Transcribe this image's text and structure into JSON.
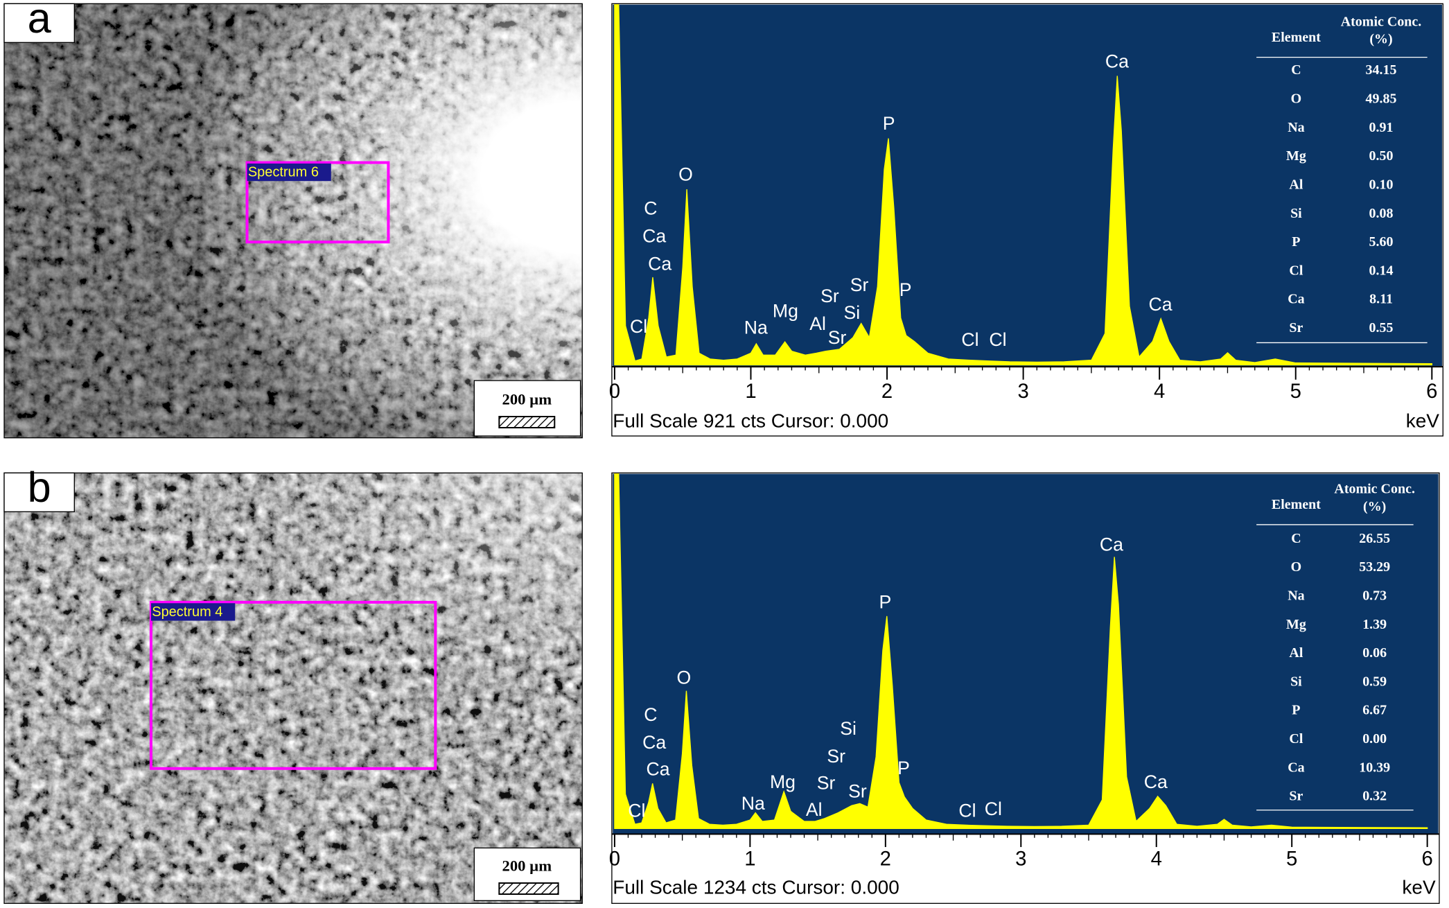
{
  "panels": [
    {
      "label": "a",
      "spectrum_label": "Spectrum 6",
      "scale_bar": "200 µm"
    },
    {
      "label": "b",
      "spectrum_label": "Spectrum 4",
      "scale_bar": "200 µm"
    }
  ],
  "chart_data": [
    {
      "type": "area",
      "color": "#ffff00",
      "background": "#0b3565",
      "x": [
        0,
        0.03,
        0.08,
        0.15,
        0.2,
        0.25,
        0.28,
        0.32,
        0.38,
        0.45,
        0.5,
        0.53,
        0.57,
        0.62,
        0.7,
        0.8,
        0.9,
        1.0,
        1.04,
        1.09,
        1.18,
        1.25,
        1.3,
        1.4,
        1.48,
        1.55,
        1.65,
        1.75,
        1.81,
        1.87,
        1.93,
        1.98,
        2.01,
        2.05,
        2.1,
        2.14,
        2.2,
        2.3,
        2.45,
        2.6,
        2.75,
        2.9,
        3.1,
        3.3,
        3.5,
        3.6,
        3.66,
        3.69,
        3.72,
        3.78,
        3.85,
        3.95,
        4.01,
        4.07,
        4.15,
        4.3,
        4.45,
        4.5,
        4.56,
        4.7,
        4.85,
        5.0,
        5.5,
        6.0
      ],
      "values": [
        921,
        921,
        100,
        10,
        15,
        120,
        224,
        100,
        20,
        25,
        250,
        449,
        200,
        30,
        15,
        12,
        15,
        30,
        54,
        25,
        25,
        59,
        35,
        25,
        30,
        35,
        40,
        70,
        106,
        70,
        200,
        500,
        579,
        400,
        120,
        75,
        60,
        30,
        15,
        12,
        10,
        8,
        7,
        8,
        12,
        80,
        550,
        739,
        600,
        150,
        20,
        60,
        118,
        60,
        12,
        8,
        15,
        31,
        12,
        6,
        15,
        5,
        4,
        3
      ],
      "xlim": [
        0,
        6
      ],
      "xticks": [
        0,
        1,
        2,
        3,
        4,
        5,
        6
      ],
      "ylim": [
        0,
        921
      ],
      "x_label": "keV",
      "footer": "Full Scale 921 cts Cursor: 0.000",
      "annotations": [
        "Cl",
        "C",
        "Ca",
        "Ca",
        "O",
        "Na",
        "Mg",
        "Al",
        "Sr",
        "Sr",
        "Sr",
        "Si",
        "P",
        "P",
        "Cl",
        "Cl",
        "Ca",
        "Ca"
      ],
      "table": {
        "header": [
          "Element",
          "Atomic Conc. (%)"
        ],
        "rows": [
          [
            "C",
            "34.15"
          ],
          [
            "O",
            "49.85"
          ],
          [
            "Na",
            "0.91"
          ],
          [
            "Mg",
            "0.50"
          ],
          [
            "Al",
            "0.10"
          ],
          [
            "Si",
            "0.08"
          ],
          [
            "P",
            "5.60"
          ],
          [
            "Cl",
            "0.14"
          ],
          [
            "Ca",
            "8.11"
          ],
          [
            "Sr",
            "0.55"
          ]
        ]
      }
    },
    {
      "type": "area",
      "color": "#ffff00",
      "background": "#0b3565",
      "x": [
        0,
        0.03,
        0.08,
        0.15,
        0.2,
        0.25,
        0.28,
        0.32,
        0.38,
        0.45,
        0.5,
        0.53,
        0.57,
        0.62,
        0.7,
        0.8,
        0.9,
        1.0,
        1.04,
        1.09,
        1.18,
        1.25,
        1.3,
        1.4,
        1.48,
        1.55,
        1.65,
        1.75,
        1.81,
        1.87,
        1.93,
        1.98,
        2.01,
        2.05,
        2.1,
        2.14,
        2.2,
        2.3,
        2.45,
        2.6,
        2.75,
        2.9,
        3.1,
        3.3,
        3.5,
        3.6,
        3.66,
        3.69,
        3.72,
        3.78,
        3.85,
        3.95,
        4.01,
        4.07,
        4.15,
        4.3,
        4.45,
        4.5,
        4.56,
        4.7,
        4.85,
        5.0,
        5.5,
        6.0
      ],
      "values": [
        1234,
        1234,
        120,
        15,
        20,
        90,
        157,
        70,
        20,
        30,
        260,
        479,
        220,
        35,
        15,
        12,
        15,
        30,
        55,
        25,
        30,
        129,
        60,
        25,
        25,
        35,
        55,
        80,
        87,
        75,
        250,
        620,
        739,
        500,
        160,
        110,
        70,
        30,
        15,
        12,
        10,
        8,
        7,
        8,
        12,
        100,
        700,
        945,
        780,
        180,
        25,
        70,
        112,
        80,
        15,
        8,
        15,
        32,
        12,
        6,
        12,
        5,
        4,
        3
      ],
      "xlim": [
        0,
        6
      ],
      "xticks": [
        0,
        1,
        2,
        3,
        4,
        5,
        6
      ],
      "ylim": [
        0,
        1234
      ],
      "x_label": "keV",
      "footer": "Full Scale 1234 cts Cursor: 0.000",
      "annotations": [
        "Cl",
        "C",
        "Ca",
        "Ca",
        "O",
        "Na",
        "Mg",
        "Al",
        "Sr",
        "Sr",
        "Si",
        "Sr",
        "P",
        "P",
        "Cl",
        "Cl",
        "Ca",
        "Ca"
      ],
      "table": {
        "header": [
          "Element",
          "Atomic Conc.(%)"
        ],
        "rows": [
          [
            "C",
            "26.55"
          ],
          [
            "O",
            "53.29"
          ],
          [
            "Na",
            "0.73"
          ],
          [
            "Mg",
            "1.39"
          ],
          [
            "Al",
            "0.06"
          ],
          [
            "Si",
            "0.59"
          ],
          [
            "P",
            "6.67"
          ],
          [
            "Cl",
            "0.00"
          ],
          [
            "Ca",
            "10.39"
          ],
          [
            "Sr",
            "0.32"
          ]
        ]
      }
    }
  ]
}
